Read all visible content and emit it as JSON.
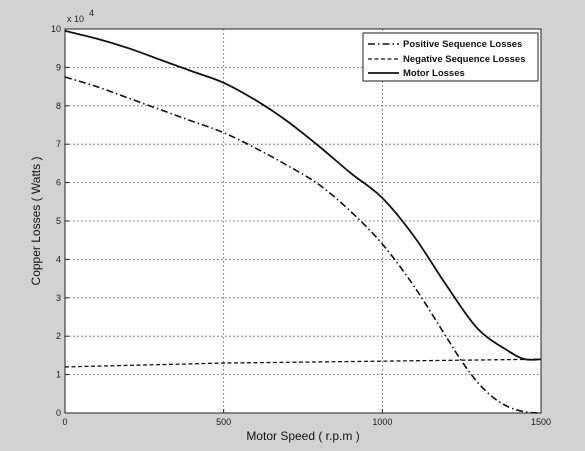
{
  "chart_data": {
    "type": "line",
    "title": "",
    "xlabel": "Motor Speed ( r.p.m )",
    "ylabel": "Copper Losses ( Watts )",
    "y_multiplier_label": "x 10",
    "y_multiplier_exponent": "4",
    "xlim": [
      0,
      1500
    ],
    "ylim": [
      0,
      10
    ],
    "xticks": [
      0,
      500,
      1000,
      1500
    ],
    "yticks": [
      0,
      1,
      2,
      3,
      4,
      5,
      6,
      7,
      8,
      9,
      10
    ],
    "grid": true,
    "legend_position": "top-right",
    "series": [
      {
        "name": "Positive Sequence Losses",
        "style": "dash-dot",
        "x": [
          0,
          100,
          200,
          300,
          400,
          500,
          600,
          700,
          800,
          900,
          1000,
          1100,
          1200,
          1250,
          1300,
          1350,
          1400,
          1450,
          1500
        ],
        "y": [
          8.75,
          8.5,
          8.2,
          7.9,
          7.6,
          7.3,
          6.9,
          6.45,
          5.95,
          5.25,
          4.4,
          3.3,
          2.0,
          1.35,
          0.8,
          0.4,
          0.15,
          0.03,
          0.0
        ]
      },
      {
        "name": "Negative Sequence Losses",
        "style": "dashed",
        "x": [
          0,
          100,
          200,
          300,
          400,
          500,
          600,
          700,
          800,
          900,
          1000,
          1100,
          1200,
          1300,
          1400,
          1500
        ],
        "y": [
          1.2,
          1.22,
          1.24,
          1.26,
          1.28,
          1.3,
          1.31,
          1.32,
          1.33,
          1.34,
          1.35,
          1.36,
          1.37,
          1.38,
          1.39,
          1.4
        ]
      },
      {
        "name": "Motor Losses",
        "style": "solid",
        "x": [
          0,
          100,
          200,
          300,
          400,
          500,
          600,
          700,
          800,
          900,
          1000,
          1100,
          1200,
          1300,
          1400,
          1450,
          1500
        ],
        "y": [
          9.95,
          9.75,
          9.5,
          9.2,
          8.9,
          8.6,
          8.15,
          7.6,
          6.95,
          6.25,
          5.6,
          4.6,
          3.35,
          2.2,
          1.6,
          1.4,
          1.4
        ]
      }
    ]
  }
}
